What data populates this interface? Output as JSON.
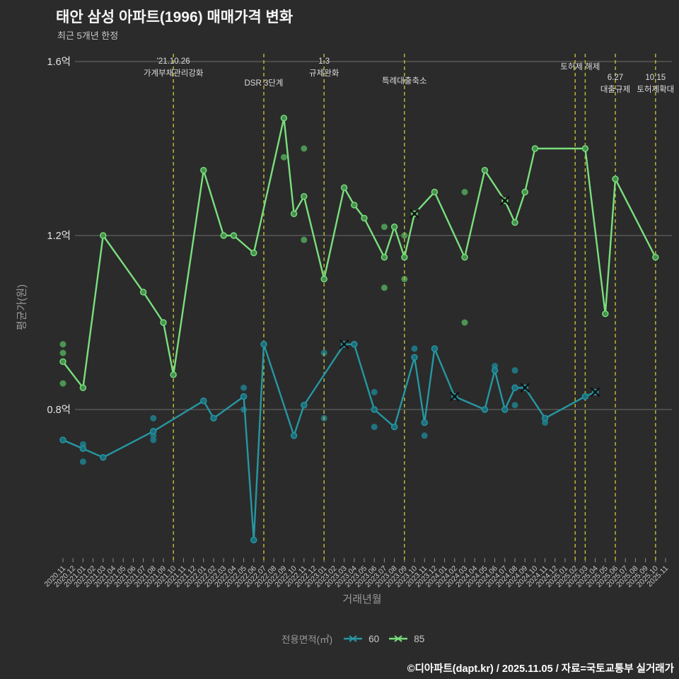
{
  "header": {
    "title": "태안 삼성 아파트(1996) 매매가격 변화",
    "subtitle": "최근 5개년 한정"
  },
  "footer": {
    "credit": "©디아파트(dapt.kr) / 2025.11.05 / 자료=국토교통부 실거래가"
  },
  "colors": {
    "background": "#2b2b2b",
    "grid": "#6e6e6e",
    "event_line": "#b9b53a",
    "axis_tick": "#8a8a8a",
    "axis_text": "#c9c9c9",
    "y_tick_text": "#e5e5e5",
    "annotation_text": "#dcdcdc",
    "x_marker": "#0e0e0e"
  },
  "chart_data": {
    "type": "line",
    "title": "태안 삼성 아파트(1996) 매매가격 변화",
    "subtitle": "최근 5개년 한정",
    "xlabel": "거래년월",
    "ylabel": "평균가(원)",
    "unit": "억원",
    "legend_title": "전용면적(㎡)",
    "grid": "horizontal",
    "ylim": [
      0.45,
      1.65
    ],
    "y_ticks": [
      {
        "label": "1.6억",
        "value": 1.6
      },
      {
        "label": "1.2억",
        "value": 1.2
      },
      {
        "label": "0.8억",
        "value": 0.8
      }
    ],
    "categories": [
      "2020.11",
      "2020.12",
      "2021.01",
      "2021.02",
      "2021.03",
      "2021.04",
      "2021.05",
      "2021.06",
      "2021.07",
      "2021.08",
      "2021.09",
      "2021.10",
      "2021.11",
      "2021.12",
      "2022.01",
      "2022.02",
      "2022.03",
      "2022.04",
      "2022.05",
      "2022.06",
      "2022.07",
      "2022.08",
      "2022.09",
      "2022.10",
      "2022.11",
      "2022.12",
      "2023.01",
      "2023.02",
      "2023.03",
      "2023.04",
      "2023.05",
      "2023.06",
      "2023.07",
      "2023.08",
      "2023.09",
      "2023.10",
      "2023.11",
      "2023.12",
      "2024.01",
      "2024.02",
      "2024.03",
      "2024.04",
      "2024.05",
      "2024.06",
      "2024.07",
      "2024.08",
      "2024.09",
      "2024.10",
      "2024.11",
      "2024.12",
      "2025.01",
      "2025.02",
      "2025.03",
      "2025.04",
      "2025.05",
      "2025.06",
      "2025.07",
      "2025.08",
      "2025.09",
      "2025.10",
      "2025.11"
    ],
    "series": [
      {
        "name": "60",
        "color": "#2697a2",
        "marker_fill": "#1b6f7d",
        "scatter_color": "#1f7a88",
        "points": [
          [
            "2020.11",
            0.73
          ],
          [
            "2021.01",
            0.71
          ],
          [
            "2021.03",
            0.69
          ],
          [
            "2021.08",
            0.75
          ],
          [
            "2022.01",
            0.82
          ],
          [
            "2022.02",
            0.78
          ],
          [
            "2022.05",
            0.83
          ],
          [
            "2022.06",
            0.5
          ],
          [
            "2022.07",
            0.95
          ],
          [
            "2022.10",
            0.74
          ],
          [
            "2022.11",
            0.81
          ],
          [
            "2023.03",
            0.95
          ],
          [
            "2023.04",
            0.95
          ],
          [
            "2023.06",
            0.8
          ],
          [
            "2023.08",
            0.76
          ],
          [
            "2023.10",
            0.92
          ],
          [
            "2023.11",
            0.77
          ],
          [
            "2023.12",
            0.94
          ],
          [
            "2024.02",
            0.83
          ],
          [
            "2024.05",
            0.8
          ],
          [
            "2024.06",
            0.89
          ],
          [
            "2024.07",
            0.8
          ],
          [
            "2024.08",
            0.85
          ],
          [
            "2024.09",
            0.85
          ],
          [
            "2024.11",
            0.78
          ],
          [
            "2025.03",
            0.83
          ],
          [
            "2025.04",
            0.84
          ]
        ],
        "scatter": [
          [
            "2021.01",
            0.72
          ],
          [
            "2021.01",
            0.68
          ],
          [
            "2021.08",
            0.78
          ],
          [
            "2021.08",
            0.74
          ],
          [
            "2021.08",
            0.73
          ],
          [
            "2022.05",
            0.85
          ],
          [
            "2022.05",
            0.8
          ],
          [
            "2023.01",
            0.93
          ],
          [
            "2023.01",
            0.78
          ],
          [
            "2023.06",
            0.84
          ],
          [
            "2023.06",
            0.76
          ],
          [
            "2023.10",
            0.94
          ],
          [
            "2023.11",
            0.74
          ],
          [
            "2024.06",
            0.9
          ],
          [
            "2024.08",
            0.89
          ],
          [
            "2024.08",
            0.81
          ],
          [
            "2024.11",
            0.77
          ]
        ],
        "x_markers": [
          [
            "2023.03",
            0.95
          ],
          [
            "2024.02",
            0.83
          ],
          [
            "2024.09",
            0.85
          ],
          [
            "2025.04",
            0.84
          ]
        ]
      },
      {
        "name": "85",
        "color": "#79df7d",
        "marker_fill": "#45914d",
        "scatter_color": "#4f9d57",
        "points": [
          [
            "2020.11",
            0.91
          ],
          [
            "2021.01",
            0.85
          ],
          [
            "2021.03",
            1.2
          ],
          [
            "2021.07",
            1.07
          ],
          [
            "2021.09",
            1.0
          ],
          [
            "2021.10",
            0.88
          ],
          [
            "2022.01",
            1.35
          ],
          [
            "2022.03",
            1.2
          ],
          [
            "2022.04",
            1.2
          ],
          [
            "2022.06",
            1.16
          ],
          [
            "2022.09",
            1.47
          ],
          [
            "2022.10",
            1.25
          ],
          [
            "2022.11",
            1.29
          ],
          [
            "2023.01",
            1.1
          ],
          [
            "2023.03",
            1.31
          ],
          [
            "2023.04",
            1.27
          ],
          [
            "2023.05",
            1.24
          ],
          [
            "2023.07",
            1.15
          ],
          [
            "2023.08",
            1.22
          ],
          [
            "2023.09",
            1.15
          ],
          [
            "2023.10",
            1.25
          ],
          [
            "2023.12",
            1.3
          ],
          [
            "2024.03",
            1.15
          ],
          [
            "2024.05",
            1.35
          ],
          [
            "2024.07",
            1.28
          ],
          [
            "2024.08",
            1.23
          ],
          [
            "2024.09",
            1.3
          ],
          [
            "2024.10",
            1.4
          ],
          [
            "2025.03",
            1.4
          ],
          [
            "2025.05",
            1.02
          ],
          [
            "2025.06",
            1.33
          ],
          [
            "2025.10",
            1.15
          ]
        ],
        "scatter": [
          [
            "2020.11",
            0.95
          ],
          [
            "2020.11",
            0.93
          ],
          [
            "2020.11",
            0.86
          ],
          [
            "2022.09",
            1.38
          ],
          [
            "2022.11",
            1.4
          ],
          [
            "2022.11",
            1.19
          ],
          [
            "2023.07",
            1.22
          ],
          [
            "2023.07",
            1.08
          ],
          [
            "2023.08",
            1.22
          ],
          [
            "2023.09",
            1.2
          ],
          [
            "2023.09",
            1.1
          ],
          [
            "2024.03",
            1.3
          ],
          [
            "2024.03",
            1.0
          ]
        ],
        "x_markers": [
          [
            "2023.10",
            1.25
          ],
          [
            "2024.07",
            1.28
          ]
        ]
      }
    ],
    "events": [
      {
        "mx": 11,
        "rows": [
          {
            "t": "'21.10.26",
            "y": 90
          },
          {
            "t": "가계부채관리강화",
            "y": 107
          }
        ]
      },
      {
        "mx": 20,
        "rows": [
          {
            "t": "DSR 3단계",
            "y": 121
          }
        ]
      },
      {
        "mx": 26,
        "rows": [
          {
            "t": "1.3",
            "y": 90
          },
          {
            "t": "규제완화",
            "y": 107
          }
        ]
      },
      {
        "mx": 34,
        "rows": [
          {
            "t": "특례대출축소",
            "y": 118
          }
        ]
      },
      {
        "mx": 51,
        "label_mx": 51.5,
        "rows": [
          {
            "t": "토허제 해제",
            "y": 98
          }
        ]
      },
      {
        "mx": 52,
        "rows": []
      },
      {
        "mx": 55,
        "rows": [
          {
            "t": "6.27",
            "y": 113
          },
          {
            "t": "대출규제",
            "y": 130
          }
        ]
      },
      {
        "mx": 59,
        "rows": [
          {
            "t": "10.15",
            "y": 113
          },
          {
            "t": "토허제확대",
            "y": 130
          }
        ]
      }
    ]
  }
}
